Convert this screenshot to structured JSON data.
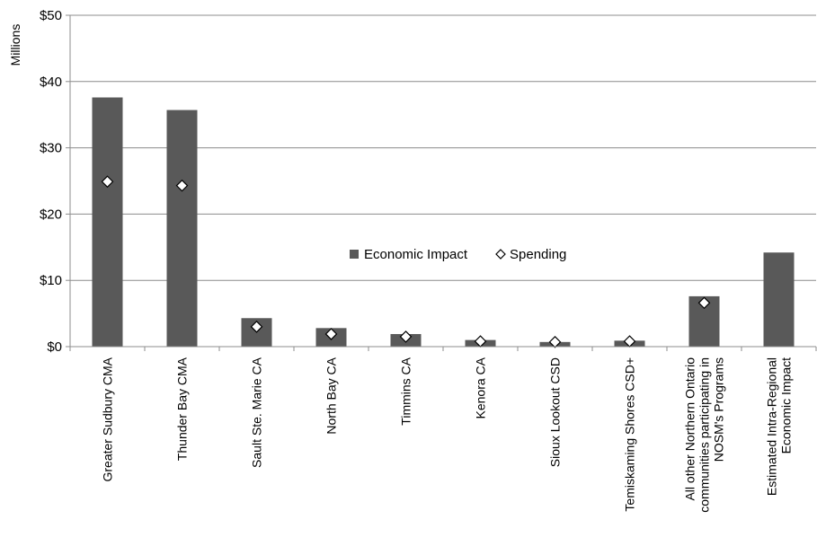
{
  "chart_data": {
    "type": "bar",
    "ylabel": "Millions",
    "ylim": [
      0,
      50
    ],
    "yticks": [
      0,
      10,
      20,
      30,
      40,
      50
    ],
    "ytick_labels": [
      "$0",
      "$10",
      "$20",
      "$30",
      "$40",
      "$50"
    ],
    "grid": true,
    "legend_position": "center",
    "categories": [
      [
        "Greater Sudbury CMA"
      ],
      [
        "Thunder Bay CMA"
      ],
      [
        "Sault Ste. Marie CA"
      ],
      [
        "North Bay CA"
      ],
      [
        "Timmins CA"
      ],
      [
        "Kenora CA"
      ],
      [
        "Sioux Lookout CSD"
      ],
      [
        "Temiskaming Shores CSD+"
      ],
      [
        "All other Northern Ontario",
        "communities participating in",
        "NOSM's Programs"
      ],
      [
        "Estimated Intra-Regional",
        "Economic Impact"
      ]
    ],
    "series": [
      {
        "name": "Economic Impact",
        "kind": "bar",
        "color": "#595959",
        "values": [
          37.6,
          35.7,
          4.3,
          2.8,
          1.9,
          1.0,
          0.7,
          0.9,
          7.6,
          14.2
        ]
      },
      {
        "name": "Spending",
        "kind": "marker",
        "color": "#ffffff",
        "values": [
          24.9,
          24.3,
          3.0,
          1.9,
          1.5,
          0.8,
          0.7,
          0.8,
          6.6,
          null
        ]
      }
    ]
  }
}
